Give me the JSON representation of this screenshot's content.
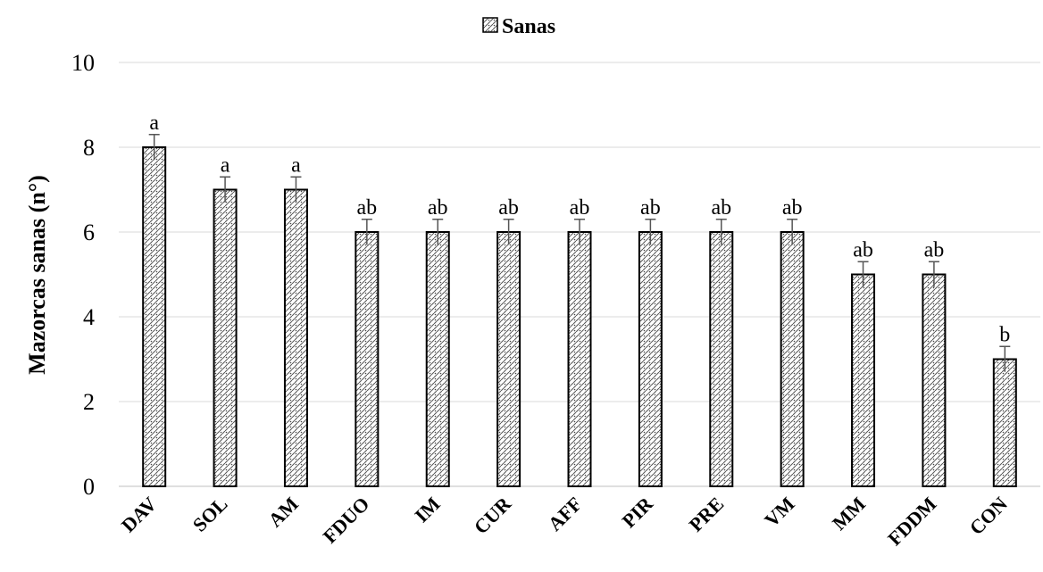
{
  "chart_data": {
    "type": "bar",
    "title": "",
    "xlabel": "",
    "ylabel": "Mazorcas sanas (n°)",
    "ylim": [
      0,
      10
    ],
    "yticks": [
      0,
      2,
      4,
      6,
      8,
      10
    ],
    "grid": true,
    "legend_position": "top-center",
    "categories": [
      "DAV",
      "SOL",
      "AM",
      "FDUO",
      "IM",
      "CUR",
      "AFF",
      "PIR",
      "PRE",
      "VM",
      "MM",
      "FDDM",
      "CON"
    ],
    "series": [
      {
        "name": "Sanas",
        "values": [
          8,
          7,
          7,
          6,
          6,
          6,
          6,
          6,
          6,
          6,
          5,
          5,
          3
        ],
        "error": [
          0.3,
          0.3,
          0.3,
          0.3,
          0.3,
          0.3,
          0.3,
          0.3,
          0.3,
          0.3,
          0.3,
          0.3,
          0.3
        ]
      }
    ],
    "significance_labels": [
      "a",
      "a",
      "a",
      "ab",
      "ab",
      "ab",
      "ab",
      "ab",
      "ab",
      "ab",
      "ab",
      "ab",
      "b"
    ],
    "colors": {
      "bar_fill": "#ffffff",
      "bar_pattern": "#555555",
      "bar_stroke": "#000000",
      "grid": "#d9d9d9",
      "error_bar": "#555555"
    }
  }
}
